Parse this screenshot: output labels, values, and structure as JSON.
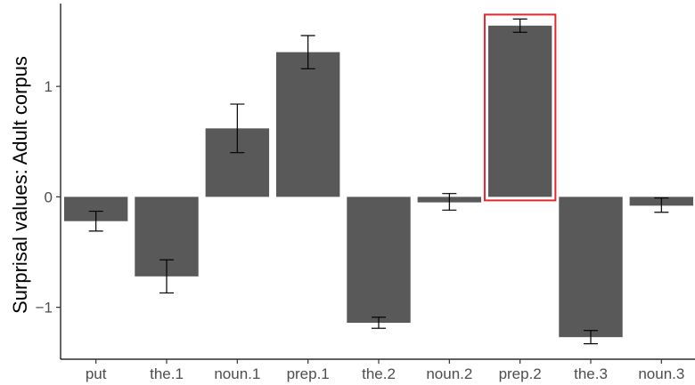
{
  "chart_data": {
    "type": "bar",
    "title": "",
    "xlabel": "",
    "ylabel": "Surprisal values: Adult corpus",
    "categories": [
      "put",
      "the.1",
      "noun.1",
      "prep.1",
      "the.2",
      "noun.2",
      "prep.2",
      "the.3",
      "noun.3"
    ],
    "values": [
      -0.22,
      -0.72,
      0.62,
      1.31,
      -1.14,
      -0.05,
      1.55,
      -1.27,
      -0.08
    ],
    "error_low": [
      -0.31,
      -0.87,
      0.4,
      1.16,
      -1.19,
      -0.12,
      1.49,
      -1.33,
      -0.14
    ],
    "error_high": [
      -0.13,
      -0.57,
      0.84,
      1.46,
      -1.09,
      0.03,
      1.61,
      -1.21,
      -0.01
    ],
    "yticks": [
      -1,
      0,
      1
    ],
    "ytick_labels": [
      "−1",
      "0",
      "1"
    ],
    "ylim": [
      -1.47,
      1.75
    ],
    "grid": false,
    "legend": "none",
    "highlight_category": "prep.2",
    "colors": {
      "bar": "#595959",
      "highlight": "#e8272a",
      "axis": "#000000",
      "text": "#4d4d4d"
    }
  }
}
